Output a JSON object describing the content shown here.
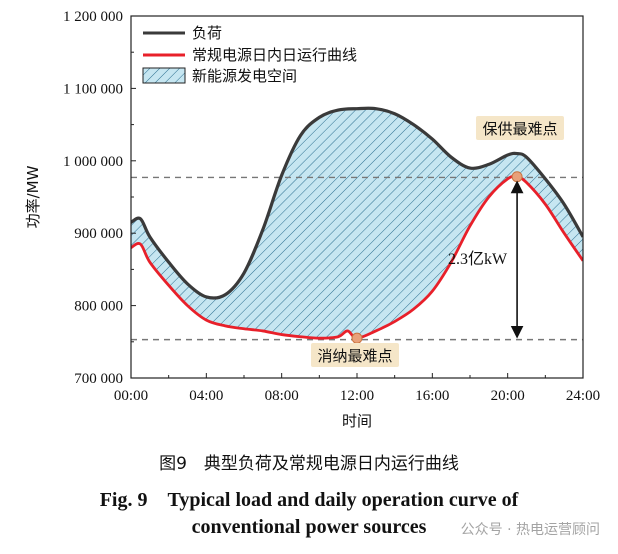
{
  "chart_data": {
    "type": "line",
    "xlabel": "时间",
    "ylabel": "功率/MW",
    "x_ticks": [
      "00:00",
      "04:00",
      "08:00",
      "12:00",
      "16:00",
      "20:00",
      "24:00"
    ],
    "x_tick_hours": [
      0,
      4,
      8,
      12,
      16,
      20,
      24
    ],
    "y_ticks": [
      "700 000",
      "800 000",
      "900 000",
      "1 000 000",
      "1 100 000",
      "1 200 000"
    ],
    "y_tick_values": [
      700000,
      800000,
      900000,
      1000000,
      1100000,
      1200000
    ],
    "xlim": [
      0,
      24
    ],
    "ylim": [
      700000,
      1200000
    ],
    "legend": [
      "负荷",
      "常规电源日内日运行曲线",
      "新能源发电空间"
    ],
    "series": [
      {
        "name": "负荷",
        "color": "#3a3a3a",
        "x": [
          0,
          0.5,
          1,
          2,
          3,
          4,
          5,
          6,
          7,
          8,
          9,
          10,
          11,
          12,
          13,
          14,
          15,
          16,
          17,
          18,
          19,
          20,
          20.5,
          21,
          22,
          23,
          24
        ],
        "y": [
          915000,
          920000,
          895000,
          860000,
          830000,
          812000,
          815000,
          845000,
          905000,
          980000,
          1035000,
          1060000,
          1070000,
          1072000,
          1072000,
          1065000,
          1050000,
          1030000,
          1005000,
          990000,
          995000,
          1008000,
          1010000,
          1005000,
          975000,
          940000,
          895000
        ]
      },
      {
        "name": "常规电源日内日运行曲线",
        "color": "#e8202a",
        "x": [
          0,
          0.5,
          1,
          2,
          3,
          4,
          5,
          6,
          7,
          8,
          9,
          10,
          11,
          11.5,
          12,
          13,
          14,
          15,
          16,
          17,
          18,
          19,
          20,
          20.5,
          21,
          22,
          23,
          24
        ],
        "y": [
          880000,
          885000,
          860000,
          828000,
          800000,
          780000,
          772000,
          768000,
          765000,
          760000,
          757000,
          755000,
          757000,
          765000,
          755000,
          765000,
          778000,
          795000,
          820000,
          860000,
          910000,
          950000,
          975000,
          978000,
          970000,
          940000,
          900000,
          862000
        ]
      }
    ],
    "area": {
      "name": "新能源发电空间",
      "fill": "#c6e6f1",
      "hatch": "#2b6f8f"
    },
    "reference_lines": [
      {
        "y": 977000,
        "style": "dashed"
      },
      {
        "y": 753000,
        "style": "dashed"
      }
    ],
    "annotations": [
      {
        "text": "保供最难点",
        "x": 20.5,
        "y": 978000,
        "box_color": "#f5e6c8"
      },
      {
        "text": "消纳最难点",
        "x": 12,
        "y": 755000,
        "box_color": "#f5e6c8"
      },
      {
        "text": "2.3亿kW",
        "x": 20.5,
        "y": 866000,
        "type": "double-arrow",
        "from": 755000,
        "to": 975000
      }
    ],
    "marker_color": "#e8a07a"
  },
  "caption": {
    "cn": "图9　典型负荷及常规电源日内运行曲线",
    "en_line1": "Fig. 9　Typical load and daily operation curve of",
    "en_line2": "conventional power sources"
  },
  "watermark": "公众号 · 热电运营顾问"
}
